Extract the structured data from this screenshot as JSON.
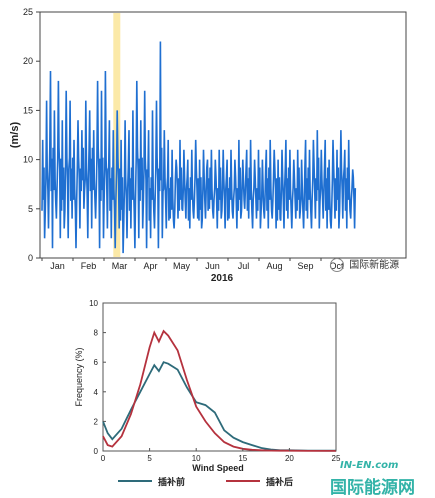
{
  "chart_data": [
    {
      "type": "line",
      "ylabel": "(m/s)",
      "xlabel": "2016",
      "ylim": [
        0,
        25
      ],
      "yticks": [
        0,
        5,
        10,
        15,
        20,
        25
      ],
      "months": [
        "Jan",
        "Feb",
        "Mar",
        "Apr",
        "May",
        "Jun",
        "Jul",
        "Aug",
        "Sep",
        "Oct"
      ],
      "grid": false,
      "highlight_band_month": 2.3,
      "series": [
        {
          "color": "#1f6fd1",
          "x_month": [
            0.0,
            0.15,
            0.3,
            0.45,
            0.6,
            0.75,
            0.9,
            1.05,
            1.2,
            1.35,
            1.5,
            1.65,
            1.8,
            1.95,
            2.1,
            2.25,
            2.4,
            2.55,
            2.7,
            2.85,
            3.0,
            3.15,
            3.3,
            3.45,
            3.6,
            3.75,
            3.9,
            4.05,
            4.2,
            4.35,
            4.5,
            4.65,
            4.8,
            4.95,
            5.1,
            5.25,
            5.4,
            5.55,
            5.7,
            5.85,
            6.0,
            6.15,
            6.3,
            6.45,
            6.6,
            6.75,
            6.9,
            7.05,
            7.2,
            7.35,
            7.5,
            7.65,
            7.8,
            7.95,
            8.1,
            8.25,
            8.4,
            8.55,
            8.7,
            8.85,
            9.0,
            9.15,
            9.3,
            9.45,
            9.6,
            9.75,
            9.9,
            10.05,
            10.2,
            10.35,
            10.5,
            10.65,
            10.8,
            10.95,
            11.1,
            11.25,
            11.4,
            11.55,
            11.7,
            11.85
          ],
          "y_max": [
            12,
            16,
            19,
            15,
            18,
            14,
            17,
            16,
            12,
            14,
            13,
            16,
            15,
            13,
            18,
            17,
            19,
            14,
            13,
            15,
            12,
            14,
            13,
            15,
            18,
            14,
            17,
            13,
            15,
            16,
            22,
            13,
            12,
            11,
            10,
            12,
            11,
            10,
            11,
            12,
            10,
            11,
            10,
            11,
            10,
            11,
            11,
            10,
            11,
            10,
            12,
            10,
            11,
            12,
            10,
            11,
            10,
            11,
            12,
            11,
            10,
            11,
            12,
            11,
            10,
            11,
            10,
            12,
            11,
            12,
            13,
            11,
            12,
            10,
            12,
            11,
            13,
            11,
            12,
            9
          ],
          "y_min": [
            2,
            3,
            1,
            4,
            2,
            3,
            2,
            4,
            1,
            3,
            5,
            2,
            3,
            4,
            1,
            2,
            3,
            2,
            1,
            3,
            0.5,
            2,
            3,
            1,
            2,
            3,
            1,
            2,
            3,
            1,
            2,
            3,
            4,
            3,
            4,
            5,
            4,
            3,
            4,
            4,
            3,
            4,
            5,
            4,
            3,
            4,
            3,
            4,
            4,
            3,
            4,
            5,
            4,
            3,
            4,
            3,
            4,
            3,
            4,
            3,
            4,
            3,
            4,
            3,
            4,
            4,
            3,
            4,
            3,
            4,
            3,
            4,
            3,
            3,
            4,
            3,
            4,
            3,
            4,
            3
          ],
          "y_mid": [
            7,
            8,
            9,
            8,
            9,
            7,
            9,
            8,
            7,
            8,
            9,
            8,
            9,
            8,
            9,
            8,
            9,
            7,
            7,
            8,
            6,
            7,
            7,
            7,
            9,
            8,
            9,
            6,
            7,
            8,
            9,
            7,
            6,
            6,
            7,
            7,
            7,
            6,
            7,
            7,
            6,
            7,
            7,
            7,
            6,
            7,
            7,
            6,
            7,
            6,
            7,
            7,
            7,
            7,
            6,
            7,
            6,
            7,
            7,
            7,
            6,
            7,
            7,
            7,
            6,
            7,
            6,
            7,
            7,
            7,
            8,
            7,
            7,
            6,
            7,
            7,
            8,
            7,
            7,
            6
          ]
        }
      ]
    },
    {
      "type": "line",
      "xlabel": "Wind Speed",
      "ylabel": "Frequency (%)",
      "xlim": [
        0,
        25
      ],
      "ylim": [
        0,
        10
      ],
      "xticks": [
        0,
        5,
        10,
        15,
        20,
        25
      ],
      "yticks": [
        0,
        2,
        4,
        6,
        8,
        10
      ],
      "grid": false,
      "legend_position": "bottom",
      "series": [
        {
          "name": "插补前",
          "color": "#2e6b7a",
          "x": [
            0,
            0.5,
            1,
            2,
            3,
            4,
            5,
            5.5,
            6,
            6.5,
            7,
            8,
            9,
            10,
            11,
            12,
            13,
            14,
            15,
            16,
            17,
            18,
            19,
            20,
            22,
            24,
            25
          ],
          "y": [
            2.0,
            1.2,
            0.8,
            1.5,
            2.8,
            4.0,
            5.2,
            5.8,
            5.4,
            6.0,
            5.9,
            5.5,
            4.3,
            3.3,
            3.1,
            2.6,
            1.4,
            0.9,
            0.6,
            0.4,
            0.2,
            0.1,
            0.05,
            0.05,
            0.03,
            0.02,
            0.02
          ]
        },
        {
          "name": "插补后",
          "color": "#b5323e",
          "x": [
            0,
            0.5,
            1,
            2,
            3,
            4,
            5,
            5.5,
            6,
            6.5,
            7,
            8,
            9,
            10,
            11,
            12,
            13,
            14,
            15,
            16,
            17,
            18,
            19,
            20,
            22,
            24,
            25
          ],
          "y": [
            1.0,
            0.4,
            0.3,
            1.0,
            2.5,
            4.5,
            7.0,
            8.0,
            7.4,
            8.1,
            7.8,
            6.8,
            4.8,
            3.0,
            2.0,
            1.2,
            0.6,
            0.3,
            0.15,
            0.08,
            0.05,
            0.03,
            0.02,
            0.02,
            0.01,
            0.01,
            0.01
          ]
        }
      ]
    }
  ],
  "watermarks": {
    "top_right": "国际新能源",
    "bottom_site": "IN-EN.com",
    "bottom_brand": "国际能源网"
  },
  "colors": {
    "band": "#fbe9a8",
    "axis": "#444444",
    "watermark": "#33b3a8"
  }
}
